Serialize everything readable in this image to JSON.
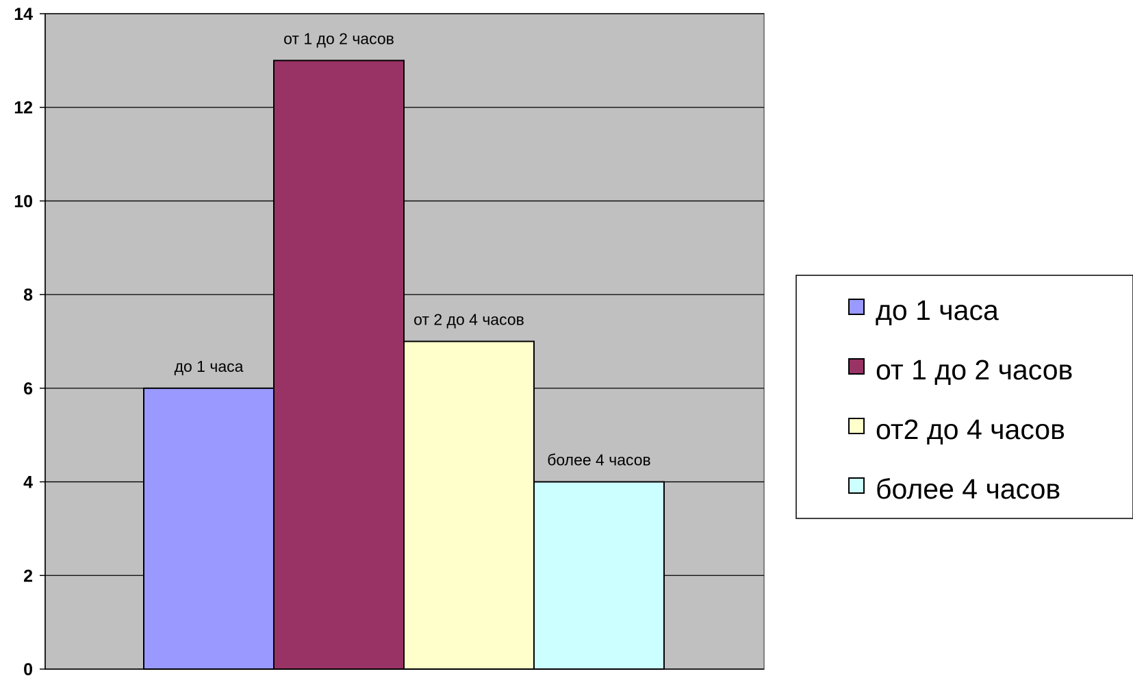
{
  "chart_data": {
    "type": "bar",
    "title": "",
    "xlabel": "",
    "ylabel": "",
    "ylim": [
      0,
      14
    ],
    "ytick_step": 2,
    "grid": true,
    "legend_position": "right",
    "plot_background": "#c0c0c0",
    "series": [
      {
        "name": "до 1 часа",
        "value": 6,
        "data_label": "до 1 часа",
        "color": "#9999ff"
      },
      {
        "name": "от 1 до 2 часов",
        "value": 13,
        "data_label": "от 1 до 2 часов",
        "color": "#993366"
      },
      {
        "name": "от2 до 4 часов",
        "value": 7,
        "data_label": "от 2 до 4 часов",
        "color": "#ffffcc"
      },
      {
        "name": "более 4 часов",
        "value": 4,
        "data_label": "более 4 часов",
        "color": "#ccffff"
      }
    ]
  }
}
